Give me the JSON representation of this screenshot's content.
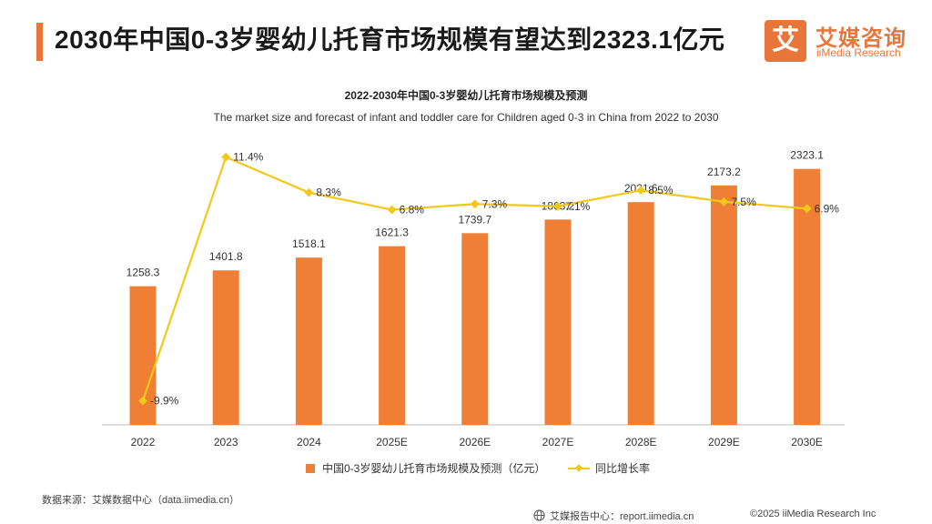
{
  "header": {
    "title": "2030年中国0-3岁婴幼儿托育市场规模有望达到2323.1亿元"
  },
  "logo": {
    "mark": "艾",
    "name_cn": "艾媒咨询",
    "name_en": "iiMedia Research"
  },
  "colors": {
    "accent": "#e8753a",
    "bar": "#ef7f35",
    "line": "#f2c81b",
    "axis": "#bbbbbb"
  },
  "chart_data": {
    "type": "bar",
    "title": "2022-2030年中国0-3岁婴幼儿托育市场规模及预测",
    "subtitle": "The market size and forecast of infant and toddler care for Children aged 0-3 in China from 2022 to 2030",
    "categories": [
      "2022",
      "2023",
      "2024",
      "2025E",
      "2026E",
      "2027E",
      "2028E",
      "2029E",
      "2030E"
    ],
    "series": [
      {
        "name": "中国0-3岁婴幼儿托育市场规模及预测（亿元）",
        "kind": "bar",
        "values": [
          1258.3,
          1401.8,
          1518.1,
          1621.3,
          1739.7,
          1863.2,
          2021.6,
          2173.2,
          2323.1
        ],
        "labels": [
          "1258.3",
          "1401.8",
          "1518.1",
          "1621.3",
          "1739.7",
          "1863.2",
          "2021.6",
          "2173.2",
          "2323.1"
        ]
      },
      {
        "name": "同比增长率",
        "kind": "line",
        "values": [
          -9.9,
          11.4,
          8.3,
          6.8,
          7.3,
          7.1,
          8.5,
          7.5,
          6.9
        ],
        "labels": [
          "-9.9%",
          "11.4%",
          "8.3%",
          "6.8%",
          "7.3%",
          "7.1%",
          "8.5%",
          "7.5%",
          "6.9%"
        ]
      }
    ],
    "ylim_bar": [
      0,
      2700
    ],
    "ylim_line": [
      -12,
      14
    ],
    "legend_position": "bottom-center",
    "grid": false
  },
  "footer": {
    "source": "数据来源：艾媒数据中心（data.iimedia.cn）",
    "report": "艾媒报告中心：report.iimedia.cn",
    "copyright": "©2025  iiMedia Research  Inc"
  }
}
